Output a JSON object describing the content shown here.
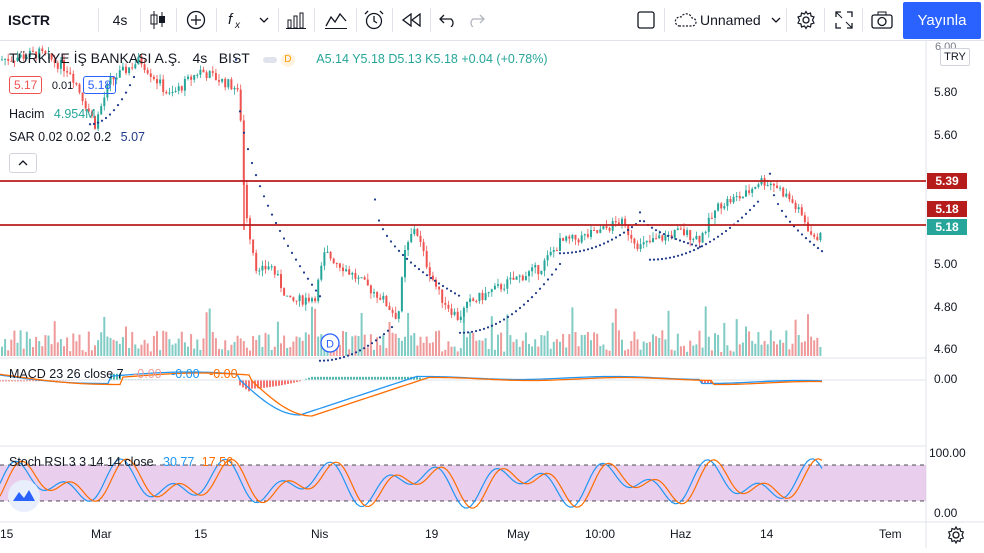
{
  "toolbar": {
    "symbol": "ISCTR",
    "interval": "4s",
    "layout_name": "Unnamed",
    "publish_label": "Yayınla"
  },
  "legend": {
    "company": "TÜRKİYE İŞ BANKASI A.Ş.",
    "interval": "4s",
    "exchange": "BIST",
    "delay_badge": "D",
    "ohlc": "A5.14 Y5.18 D5.13 K5.18 +0.04 (+0.78%)",
    "bid": "5.17",
    "spread": "0.01",
    "ask": "5.18",
    "volume_label": "Hacim",
    "volume_value": "4.954M",
    "sar_label": "SAR 0.02 0.02 0.2",
    "sar_value": "5.07",
    "macd_label": "MACD 23 26 close 7",
    "macd_v1": "-0.00",
    "macd_v2": "-0.00",
    "macd_v3": "-0.00",
    "stoch_label": "Stoch RSI 3 3 14 14 close",
    "stoch_k": "30.77",
    "stoch_d": "17.56"
  },
  "price_axis": {
    "currency": "TRY",
    "top_partial": "6.00",
    "ticks": [
      "5.80",
      "5.60",
      "5.00",
      "4.80",
      "4.60"
    ],
    "tag_resistance": "5.39",
    "tag_support": "5.18",
    "tag_last": "5.18",
    "macd_zero": "0.00",
    "stoch_top": "100.00",
    "stoch_bottom": "0.00"
  },
  "time_axis": [
    "15",
    "Mar",
    "15",
    "Nis",
    "19",
    "May",
    "10:00",
    "Haz",
    "14",
    "Tem"
  ],
  "dividend_marker": "D",
  "colors": {
    "up": "#26a69a",
    "down": "#ef5350",
    "line_red": "#b71c1c",
    "sar": "#1e3a8a",
    "macd": "#2196f3",
    "signal": "#ff6d00",
    "stoch_fill": "#e1bee7",
    "accent": "#2962ff"
  },
  "chart_data": {
    "type": "line",
    "title": "TÜRKİYE İŞ BANKASI A.Ş. · 4s · BIST",
    "x": [
      "15",
      "Mar",
      "15",
      "Nis",
      "19",
      "May",
      "10:00",
      "Haz",
      "14"
    ],
    "series": [
      {
        "name": "ISCTR",
        "values": [
          5.9,
          5.85,
          5.75,
          4.85,
          5.05,
          4.75,
          5.15,
          5.2,
          5.39
        ]
      }
    ],
    "horizontal_lines": [
      5.39,
      5.18
    ],
    "ylim": [
      4.55,
      6.0
    ]
  }
}
